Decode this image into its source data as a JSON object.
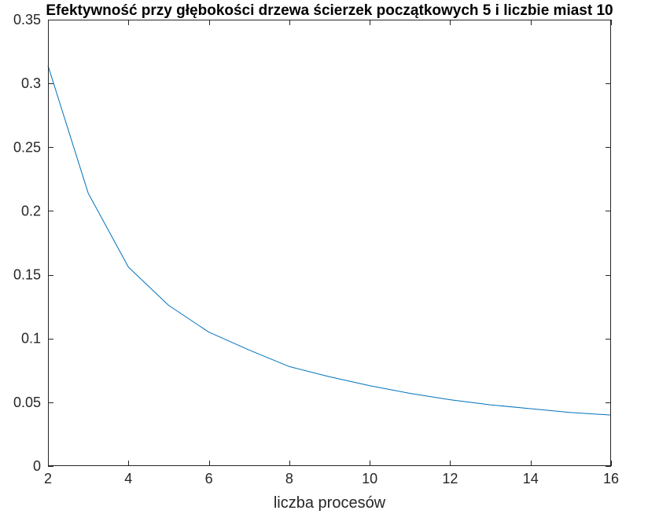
{
  "chart_data": {
    "type": "line",
    "title": "Efektywność przy głębokości drzewa ścierzek początkowych 5 i liczbie miast 10",
    "xlabel": "liczba procesów",
    "ylabel": "",
    "xlim": [
      2,
      16
    ],
    "ylim": [
      0,
      0.35
    ],
    "x_ticks": [
      2,
      4,
      6,
      8,
      10,
      12,
      14,
      16
    ],
    "x_tick_labels": [
      "2",
      "4",
      "6",
      "8",
      "10",
      "12",
      "14",
      "16"
    ],
    "y_ticks": [
      0,
      0.05,
      0.1,
      0.15,
      0.2,
      0.25,
      0.3,
      0.35
    ],
    "y_tick_labels": [
      "0",
      "0.05",
      "0.1",
      "0.15",
      "0.2",
      "0.25",
      "0.3",
      "0.35"
    ],
    "grid": false,
    "box": true,
    "series": [
      {
        "color": "#0072bd",
        "x": [
          2,
          3,
          4,
          5,
          6,
          7,
          8,
          9,
          10,
          11,
          12,
          13,
          14,
          15,
          16
        ],
        "y": [
          0.314,
          0.214,
          0.156,
          0.126,
          0.105,
          0.091,
          0.078,
          0.07,
          0.063,
          0.057,
          0.052,
          0.048,
          0.045,
          0.042,
          0.04
        ]
      }
    ]
  }
}
